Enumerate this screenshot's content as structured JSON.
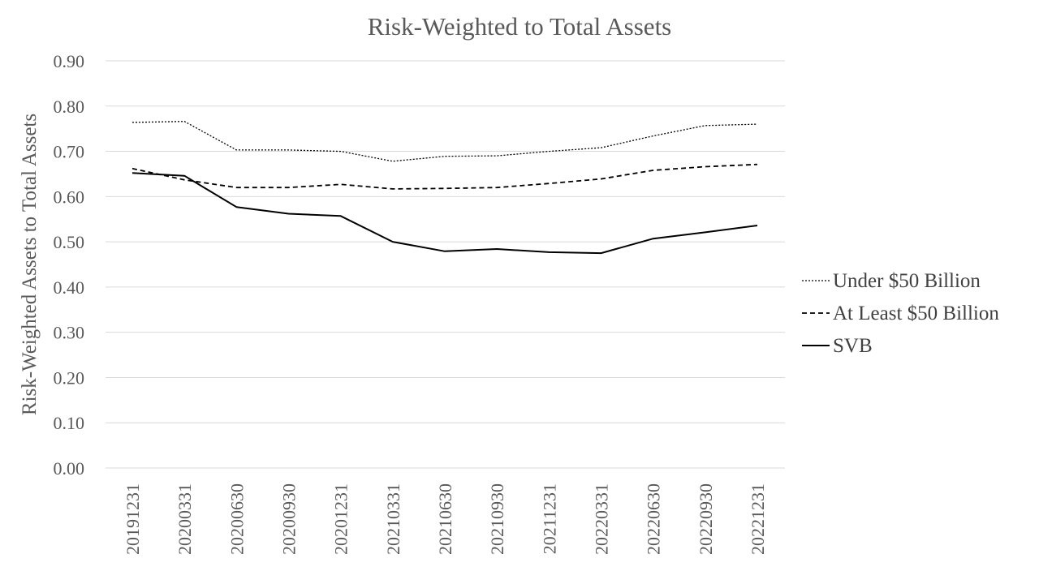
{
  "chart_data": {
    "type": "line",
    "title": "Risk-Weighted to Total Assets",
    "xlabel": "",
    "ylabel": "Risk-Weighted Assets to Total Assets",
    "ylim": [
      0,
      0.9
    ],
    "yticks": [
      "0.00",
      "0.10",
      "0.20",
      "0.30",
      "0.40",
      "0.50",
      "0.60",
      "0.70",
      "0.80",
      "0.90"
    ],
    "categories": [
      "20191231",
      "20200331",
      "20200630",
      "20200930",
      "20201231",
      "20210331",
      "20210630",
      "20210930",
      "20211231",
      "20220331",
      "20220630",
      "20220930",
      "20221231"
    ],
    "grid": true,
    "legend_position": "right",
    "series": [
      {
        "name": "Under $50 Billion",
        "style": "dotted",
        "color": "#000000",
        "values": [
          0.764,
          0.766,
          0.703,
          0.703,
          0.7,
          0.678,
          0.689,
          0.69,
          0.7,
          0.708,
          0.734,
          0.757,
          0.76
        ]
      },
      {
        "name": "At Least $50 Billion",
        "style": "dashed",
        "color": "#000000",
        "values": [
          0.662,
          0.637,
          0.62,
          0.62,
          0.627,
          0.617,
          0.618,
          0.62,
          0.629,
          0.639,
          0.658,
          0.666,
          0.671
        ]
      },
      {
        "name": "SVB",
        "style": "solid",
        "color": "#000000",
        "values": [
          0.652,
          0.646,
          0.577,
          0.562,
          0.557,
          0.5,
          0.479,
          0.484,
          0.477,
          0.475,
          0.507,
          0.521,
          0.536
        ]
      }
    ]
  }
}
